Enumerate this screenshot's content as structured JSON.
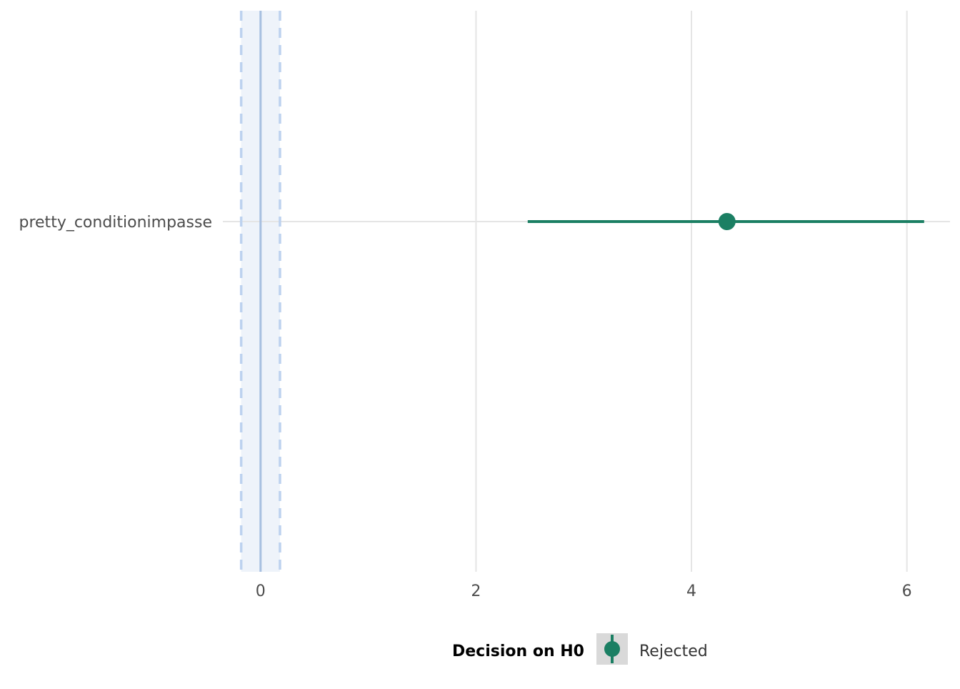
{
  "chart_data": {
    "type": "scatter",
    "subtype": "coefficient-plot",
    "title": "",
    "xlabel": "",
    "ylabel": "",
    "xlim": [
      -0.35,
      6.4
    ],
    "x_ticks": [
      0,
      2,
      4,
      6
    ],
    "x_tick_labels": [
      "0",
      "2",
      "4",
      "6"
    ],
    "grid": true,
    "rope": {
      "low": -0.18,
      "high": 0.18,
      "center": 0
    },
    "categories": [
      "pretty_conditionimpasse"
    ],
    "series": [
      {
        "estimate": 4.33,
        "ci_low": 2.48,
        "ci_high": 6.16,
        "group": "Rejected"
      }
    ],
    "legend": {
      "title": "Decision on H0",
      "entries": [
        "Rejected"
      ],
      "position": "bottom"
    },
    "colors": {
      "point": "#1b7f63",
      "rope_fill": "#eef3fa",
      "rope_line": "#a7bfe0",
      "rope_dash": "#bdd2ef",
      "grid": "#e5e5e5",
      "legend_key_bg": "#d9d9d9"
    }
  }
}
